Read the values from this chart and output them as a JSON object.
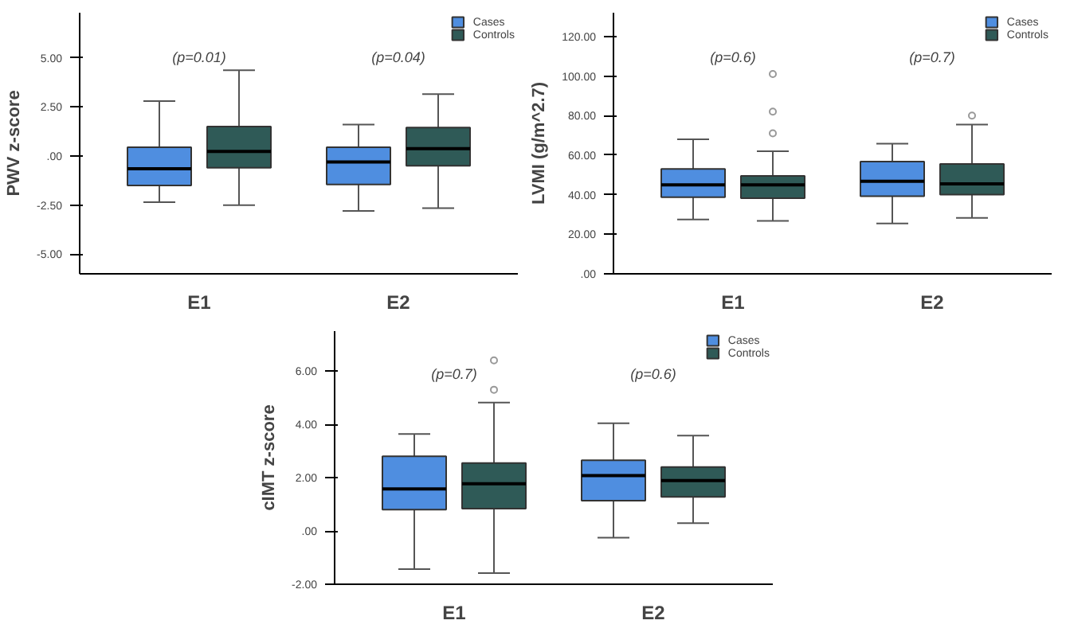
{
  "chart_data": [
    {
      "type": "box",
      "categories": [
        "E1",
        "E2"
      ],
      "ylabel": "PWV z-score",
      "ylim": [
        -6,
        7.3
      ],
      "yticks": [
        {
          "value": -5,
          "label": "-5.00"
        },
        {
          "value": -2.5,
          "label": "-2.50"
        },
        {
          "value": 0,
          "label": ".00"
        },
        {
          "value": 2.5,
          "label": "2.50"
        },
        {
          "value": 5,
          "label": "5.00"
        }
      ],
      "legend": "top right",
      "grid": false,
      "annotations": [
        "(p=0.01)",
        "(p=0.04)"
      ],
      "series": [
        {
          "name": "Cases",
          "color": "#4f8ee0",
          "boxes": [
            {
              "low": -2.35,
              "q1": -1.5,
              "median": -0.65,
              "q3": 0.45,
              "high": 2.8
            },
            {
              "low": -2.8,
              "q1": -1.45,
              "median": -0.3,
              "q3": 0.45,
              "high": 1.6
            }
          ]
        },
        {
          "name": "Controls",
          "color": "#2f5a57",
          "boxes": [
            {
              "low": -2.5,
              "q1": -0.6,
              "median": 0.23,
              "q3": 1.5,
              "high": 4.37
            },
            {
              "low": -2.65,
              "q1": -0.5,
              "median": 0.38,
              "q3": 1.45,
              "high": 3.15
            }
          ]
        }
      ]
    },
    {
      "type": "box",
      "categories": [
        "E1",
        "E2"
      ],
      "ylabel": "LVMI (g/m^2.7)",
      "ylim": [
        0,
        132
      ],
      "yticks": [
        {
          "value": 0,
          "label": ".00"
        },
        {
          "value": 20,
          "label": "20.00"
        },
        {
          "value": 40,
          "label": "40.00"
        },
        {
          "value": 60,
          "label": "60.00"
        },
        {
          "value": 80,
          "label": "80.00"
        },
        {
          "value": 100,
          "label": "100.00"
        },
        {
          "value": 120,
          "label": "120.00"
        }
      ],
      "legend": "top right",
      "grid": false,
      "annotations": [
        "(p=0.6)",
        "(p=0.7)"
      ],
      "series": [
        {
          "name": "Cases",
          "color": "#4f8ee0",
          "boxes": [
            {
              "low": 27.5,
              "q1": 38.75,
              "median": 45,
              "q3": 53,
              "high": 68
            },
            {
              "low": 25.5,
              "q1": 39.25,
              "median": 46.75,
              "q3": 56.75,
              "high": 65.75
            }
          ]
        },
        {
          "name": "Controls",
          "color": "#2f5a57",
          "boxes": [
            {
              "low": 26.75,
              "q1": 38.25,
              "median": 45,
              "q3": 49.5,
              "high": 62,
              "outliers": [
                71,
                82,
                101
              ]
            },
            {
              "low": 28.25,
              "q1": 40,
              "median": 45.5,
              "q3": 55.5,
              "high": 75.5,
              "outliers": [
                80
              ]
            }
          ]
        }
      ]
    },
    {
      "type": "box",
      "categories": [
        "E1",
        "E2"
      ],
      "ylabel": "cIMT z-score",
      "ylim": [
        -2,
        7.5
      ],
      "yticks": [
        {
          "value": -2,
          "label": "-2.00"
        },
        {
          "value": 0,
          "label": ".00"
        },
        {
          "value": 2,
          "label": "2.00"
        },
        {
          "value": 4,
          "label": "4.00"
        },
        {
          "value": 6,
          "label": "6.00"
        }
      ],
      "legend": "top right",
      "grid": false,
      "annotations": [
        "(p=0.7)",
        "(p=0.6)"
      ],
      "series": [
        {
          "name": "Cases",
          "color": "#4f8ee0",
          "boxes": [
            {
              "low": -1.43,
              "q1": 0.8,
              "median": 1.58,
              "q3": 2.8,
              "high": 3.64
            },
            {
              "low": -0.25,
              "q1": 1.14,
              "median": 2.08,
              "q3": 2.65,
              "high": 4.04
            }
          ]
        },
        {
          "name": "Controls",
          "color": "#2f5a57",
          "boxes": [
            {
              "low": -1.58,
              "q1": 0.84,
              "median": 1.77,
              "q3": 2.55,
              "high": 4.82,
              "outliers": [
                5.3,
                6.4
              ]
            },
            {
              "low": 0.29,
              "q1": 1.28,
              "median": 1.89,
              "q3": 2.4,
              "high": 3.58
            }
          ]
        }
      ]
    }
  ]
}
